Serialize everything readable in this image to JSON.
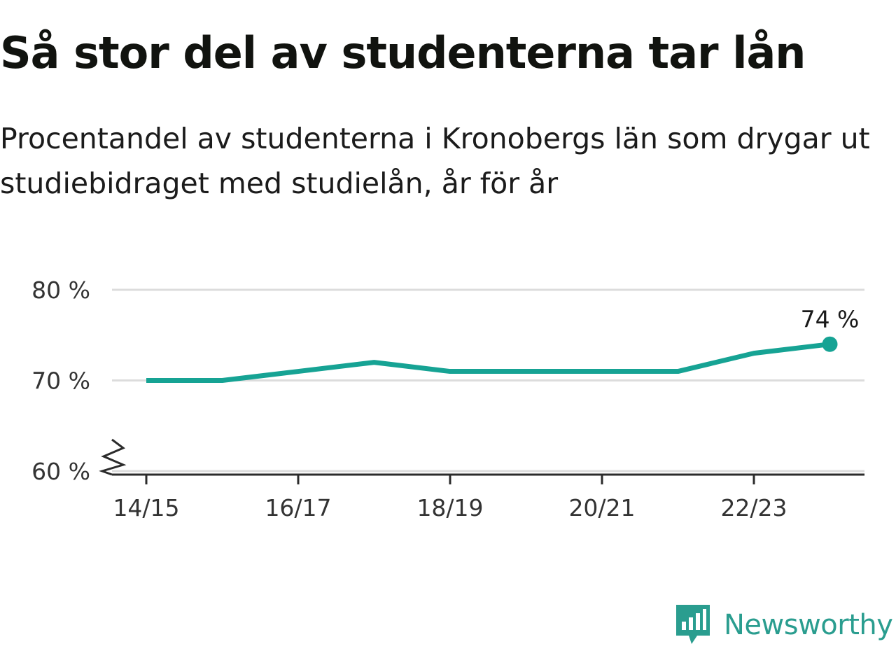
{
  "title": "Så stor del av studenterna tar lån",
  "subtitle": "Procentandel av studenterna i Kronobergs län som drygar ut studiebidraget med studielån, år för år",
  "brand": {
    "name": "Newsworthy",
    "icon": "newsworthy-logo-icon",
    "color": "#2a9d8f"
  },
  "chart_data": {
    "type": "line",
    "x": [
      "14/15",
      "15/16",
      "16/17",
      "17/18",
      "18/19",
      "19/20",
      "20/21",
      "21/22",
      "22/23",
      "23/24"
    ],
    "x_tick_labels": [
      "14/15",
      "16/17",
      "18/19",
      "20/21",
      "22/23"
    ],
    "series": [
      {
        "values": [
          70,
          70,
          71,
          72,
          71,
          71,
          71,
          71,
          73,
          74
        ],
        "color": "#16a394"
      }
    ],
    "end_label": "74 %",
    "y_ticks": [
      60,
      70,
      80
    ],
    "y_tick_labels": [
      "60 %",
      "70 %",
      "80 %"
    ],
    "ylim": [
      60,
      80
    ],
    "y_axis_break": true,
    "grid": true
  }
}
